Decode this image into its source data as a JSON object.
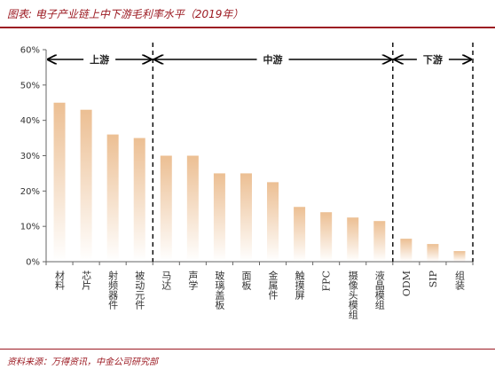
{
  "header": {
    "title": "图表: 电子产业链上中下游毛利率水平（2019年）"
  },
  "footer": {
    "source": "资料来源：万得资讯，中金公司研究部"
  },
  "chart_data": {
    "type": "bar",
    "title": "图表: 电子产业链上中下游毛利率水平（2019年）",
    "xlabel": "",
    "ylabel": "",
    "ylim": [
      0,
      60
    ],
    "yticks": [
      "0%",
      "10%",
      "20%",
      "30%",
      "40%",
      "50%",
      "60%"
    ],
    "grid": false,
    "categories": [
      "材料",
      "芯片",
      "射频器件",
      "被动元件",
      "马达",
      "声学",
      "玻璃盖板",
      "面板",
      "金属件",
      "触摸屏",
      "FPC",
      "摄像头模组",
      "液晶模组",
      "ODM",
      "SIP",
      "组装"
    ],
    "values": [
      45,
      43,
      36,
      35,
      30,
      30,
      25,
      25,
      22.5,
      15.5,
      14,
      12.5,
      11.5,
      6.5,
      5,
      3
    ],
    "units": "%",
    "segments": [
      {
        "label": "上游",
        "start": 0,
        "end": 3
      },
      {
        "label": "中游",
        "start": 4,
        "end": 12
      },
      {
        "label": "下游",
        "start": 13,
        "end": 15
      }
    ],
    "bar_color_top": "#ecbf93",
    "bar_color_bottom": "#ffffff"
  }
}
